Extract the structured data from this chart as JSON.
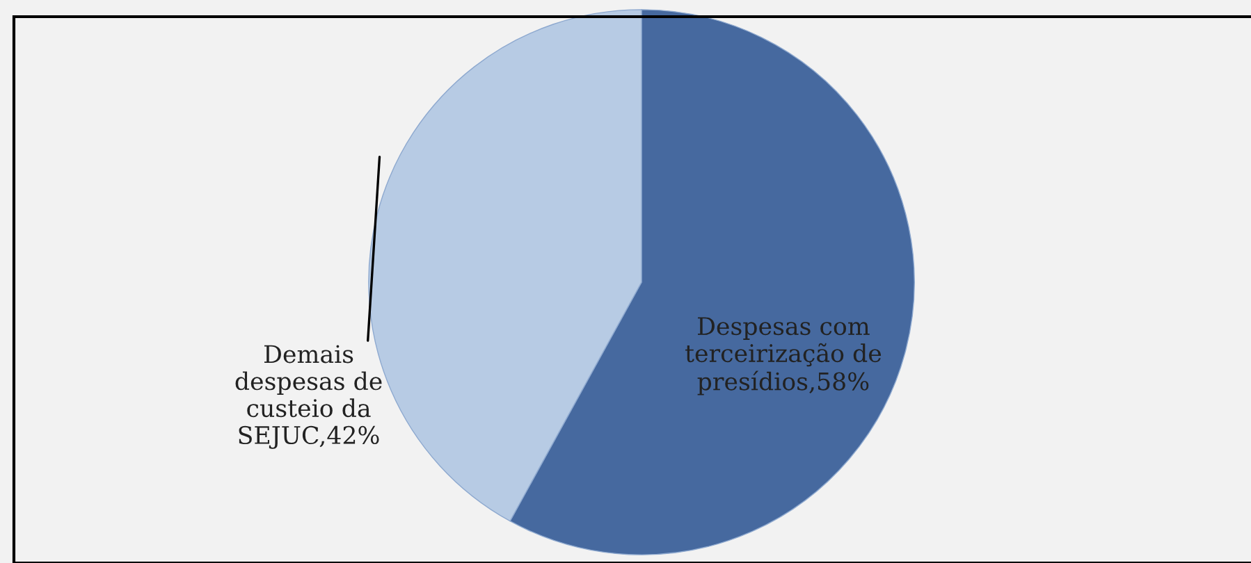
{
  "chart_data": {
    "type": "pie",
    "categories": [
      "Despesas com\nterceirização de\npresídios",
      "Demais\ndespesas de\ncusteio da\nSEJUC"
    ],
    "values": [
      58,
      42
    ],
    "colors": [
      "#46699f",
      "#b7cbe4"
    ],
    "value_labels": [
      "58%",
      "42%"
    ],
    "legend": false
  }
}
